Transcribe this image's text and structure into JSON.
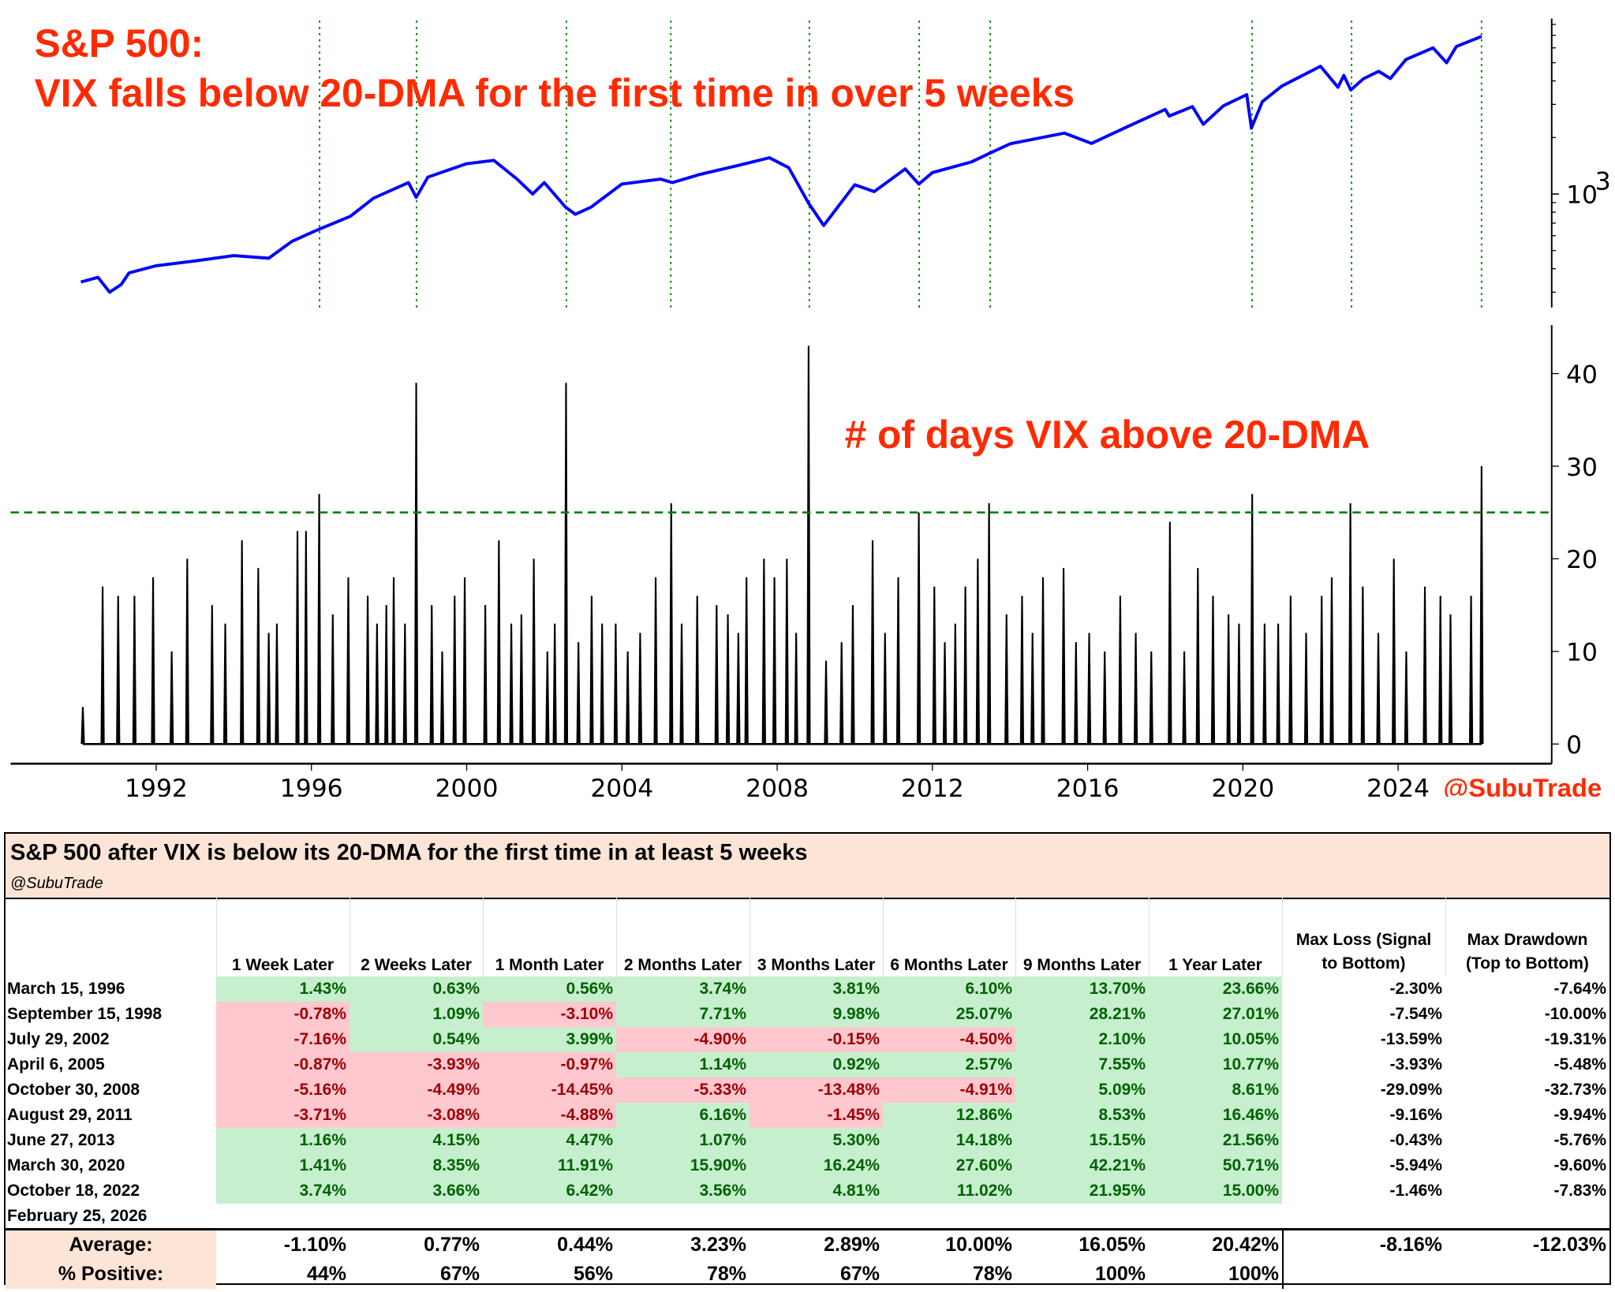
{
  "chart_data": [
    {
      "type": "line",
      "title": "S&P 500:",
      "subtitle": "VIX falls below 20-DMA for the first time in over 5 weeks",
      "yscale": "log",
      "ylim": [
        250,
        8400
      ],
      "xlim": [
        1989.5,
        2027.8
      ],
      "ytick_labels": [
        {
          "value": 1000,
          "base": "10",
          "exp": "3"
        }
      ],
      "line_color": "#0000ff",
      "signal_line_color": "#008000",
      "signal_dates": [
        1996.21,
        1998.71,
        2002.57,
        2005.26,
        2008.83,
        2011.66,
        2013.49,
        2020.24,
        2022.8,
        2026.15
      ],
      "points": [
        [
          1990.06,
          340
        ],
        [
          1990.5,
          360
        ],
        [
          1990.8,
          300
        ],
        [
          1991.1,
          330
        ],
        [
          1991.3,
          380
        ],
        [
          1992.0,
          415
        ],
        [
          1993.0,
          440
        ],
        [
          1994.0,
          470
        ],
        [
          1994.9,
          455
        ],
        [
          1995.5,
          560
        ],
        [
          1996.2,
          650
        ],
        [
          1997.0,
          760
        ],
        [
          1997.6,
          950
        ],
        [
          1998.5,
          1150
        ],
        [
          1998.7,
          960
        ],
        [
          1999.0,
          1230
        ],
        [
          2000.0,
          1450
        ],
        [
          2000.7,
          1510
        ],
        [
          2001.3,
          1200
        ],
        [
          2001.7,
          1000
        ],
        [
          2002.0,
          1150
        ],
        [
          2002.55,
          850
        ],
        [
          2002.8,
          780
        ],
        [
          2003.2,
          850
        ],
        [
          2004.0,
          1130
        ],
        [
          2005.0,
          1200
        ],
        [
          2005.3,
          1150
        ],
        [
          2006.0,
          1270
        ],
        [
          2007.0,
          1420
        ],
        [
          2007.8,
          1560
        ],
        [
          2008.3,
          1380
        ],
        [
          2008.8,
          900
        ],
        [
          2009.2,
          680
        ],
        [
          2010.0,
          1120
        ],
        [
          2010.5,
          1030
        ],
        [
          2011.3,
          1360
        ],
        [
          2011.65,
          1130
        ],
        [
          2012.0,
          1300
        ],
        [
          2013.0,
          1480
        ],
        [
          2013.4,
          1620
        ],
        [
          2014.0,
          1850
        ],
        [
          2015.4,
          2110
        ],
        [
          2016.1,
          1860
        ],
        [
          2017.0,
          2270
        ],
        [
          2018.0,
          2820
        ],
        [
          2018.1,
          2600
        ],
        [
          2018.7,
          2920
        ],
        [
          2018.98,
          2350
        ],
        [
          2019.5,
          2950
        ],
        [
          2020.1,
          3380
        ],
        [
          2020.22,
          2240
        ],
        [
          2020.5,
          3100
        ],
        [
          2021.0,
          3750
        ],
        [
          2022.0,
          4790
        ],
        [
          2022.45,
          3700
        ],
        [
          2022.6,
          4280
        ],
        [
          2022.78,
          3580
        ],
        [
          2023.1,
          4100
        ],
        [
          2023.5,
          4500
        ],
        [
          2023.8,
          4120
        ],
        [
          2024.2,
          5200
        ],
        [
          2024.9,
          6000
        ],
        [
          2025.25,
          5000
        ],
        [
          2025.5,
          6100
        ],
        [
          2026.15,
          6900
        ]
      ]
    },
    {
      "type": "bar",
      "annotation": "# of days VIX above 20-DMA",
      "ylim": [
        0,
        45
      ],
      "xlim": [
        1989.5,
        2027.8
      ],
      "yticks": [
        0,
        10,
        20,
        30,
        40
      ],
      "xticks": [
        1992,
        1996,
        2000,
        2004,
        2008,
        2012,
        2016,
        2020,
        2024
      ],
      "threshold": 25,
      "threshold_color": "#008000",
      "bar_color": "#000000",
      "grid": false,
      "spikes": [
        [
          1990.11,
          4
        ],
        [
          1990.62,
          17
        ],
        [
          1991.02,
          16
        ],
        [
          1991.44,
          16
        ],
        [
          1991.92,
          18
        ],
        [
          1992.4,
          10
        ],
        [
          1992.8,
          20
        ],
        [
          1993.44,
          15
        ],
        [
          1993.78,
          13
        ],
        [
          1994.21,
          22
        ],
        [
          1994.63,
          19
        ],
        [
          1994.9,
          12
        ],
        [
          1995.11,
          13
        ],
        [
          1995.64,
          23
        ],
        [
          1995.86,
          23
        ],
        [
          1996.2,
          27
        ],
        [
          1996.55,
          14
        ],
        [
          1996.95,
          18
        ],
        [
          1997.45,
          16
        ],
        [
          1997.69,
          13
        ],
        [
          1997.93,
          15
        ],
        [
          1998.12,
          18
        ],
        [
          1998.41,
          13
        ],
        [
          1998.7,
          39
        ],
        [
          1999.1,
          15
        ],
        [
          1999.37,
          10
        ],
        [
          1999.69,
          16
        ],
        [
          1999.95,
          18
        ],
        [
          2000.48,
          15
        ],
        [
          2000.83,
          22
        ],
        [
          2001.15,
          13
        ],
        [
          2001.41,
          14
        ],
        [
          2001.73,
          20
        ],
        [
          2002.08,
          10
        ],
        [
          2002.27,
          13
        ],
        [
          2002.56,
          39
        ],
        [
          2002.88,
          11
        ],
        [
          2003.22,
          16
        ],
        [
          2003.49,
          13
        ],
        [
          2003.84,
          13
        ],
        [
          2004.15,
          10
        ],
        [
          2004.47,
          12
        ],
        [
          2004.87,
          18
        ],
        [
          2005.27,
          26
        ],
        [
          2005.54,
          13
        ],
        [
          2005.94,
          16
        ],
        [
          2006.44,
          15
        ],
        [
          2006.73,
          14
        ],
        [
          2007.0,
          12
        ],
        [
          2007.21,
          18
        ],
        [
          2007.66,
          20
        ],
        [
          2007.93,
          18
        ],
        [
          2008.25,
          20
        ],
        [
          2008.49,
          12
        ],
        [
          2008.81,
          43
        ],
        [
          2009.26,
          9
        ],
        [
          2009.66,
          11
        ],
        [
          2009.95,
          15
        ],
        [
          2010.46,
          22
        ],
        [
          2010.78,
          12
        ],
        [
          2011.12,
          18
        ],
        [
          2011.65,
          25
        ],
        [
          2012.05,
          17
        ],
        [
          2012.32,
          11
        ],
        [
          2012.59,
          13
        ],
        [
          2012.85,
          17
        ],
        [
          2013.17,
          20
        ],
        [
          2013.46,
          26
        ],
        [
          2013.91,
          14
        ],
        [
          2014.31,
          16
        ],
        [
          2014.58,
          12
        ],
        [
          2014.85,
          18
        ],
        [
          2015.38,
          19
        ],
        [
          2015.7,
          11
        ],
        [
          2016.04,
          12
        ],
        [
          2016.44,
          10
        ],
        [
          2016.84,
          16
        ],
        [
          2017.24,
          12
        ],
        [
          2017.64,
          10
        ],
        [
          2018.12,
          24
        ],
        [
          2018.49,
          10
        ],
        [
          2018.84,
          19
        ],
        [
          2019.23,
          16
        ],
        [
          2019.63,
          14
        ],
        [
          2019.9,
          13
        ],
        [
          2020.24,
          27
        ],
        [
          2020.56,
          13
        ],
        [
          2020.91,
          13
        ],
        [
          2021.23,
          16
        ],
        [
          2021.63,
          12
        ],
        [
          2022.03,
          16
        ],
        [
          2022.29,
          18
        ],
        [
          2022.77,
          26
        ],
        [
          2023.09,
          17
        ],
        [
          2023.49,
          12
        ],
        [
          2023.89,
          20
        ],
        [
          2024.21,
          10
        ],
        [
          2024.69,
          17
        ],
        [
          2025.09,
          16
        ],
        [
          2025.35,
          14
        ],
        [
          2025.88,
          16
        ],
        [
          2026.15,
          30
        ]
      ]
    }
  ],
  "watermark": "@SubuTrade",
  "table": {
    "title": "S&P 500 after VIX is below its 20-DMA for the first time in at least 5 weeks",
    "subtitle": "@SubuTrade",
    "columns": [
      "1 Week Later",
      "2 Weeks Later",
      "1 Month Later",
      "2 Months Later",
      "3 Months Later",
      "6 Months Later",
      "9 Months Later",
      "1 Year Later"
    ],
    "extra_columns": [
      [
        "Max Loss (Signal",
        "to Bottom)"
      ],
      [
        "Max Drawdown",
        "(Top to Bottom)"
      ]
    ],
    "colors": {
      "pos_fill": "#c6efce",
      "pos_text": "#006100",
      "neg_fill": "#ffc7ce",
      "neg_text": "#9c0006",
      "header_fill": "#fce4d6"
    },
    "rows": [
      {
        "date": "March 15, 1996",
        "values": [
          "1.43%",
          "0.63%",
          "0.56%",
          "3.74%",
          "3.81%",
          "6.10%",
          "13.70%",
          "23.66%"
        ],
        "extra": [
          "-2.30%",
          "-7.64%"
        ]
      },
      {
        "date": "September 15, 1998",
        "values": [
          "-0.78%",
          "1.09%",
          "-3.10%",
          "7.71%",
          "9.98%",
          "25.07%",
          "28.21%",
          "27.01%"
        ],
        "extra": [
          "-7.54%",
          "-10.00%"
        ]
      },
      {
        "date": "July 29, 2002",
        "values": [
          "-7.16%",
          "0.54%",
          "3.99%",
          "-4.90%",
          "-0.15%",
          "-4.50%",
          "2.10%",
          "10.05%"
        ],
        "extra": [
          "-13.59%",
          "-19.31%"
        ]
      },
      {
        "date": "April 6, 2005",
        "values": [
          "-0.87%",
          "-3.93%",
          "-0.97%",
          "1.14%",
          "0.92%",
          "2.57%",
          "7.55%",
          "10.77%"
        ],
        "extra": [
          "-3.93%",
          "-5.48%"
        ]
      },
      {
        "date": "October 30, 2008",
        "values": [
          "-5.16%",
          "-4.49%",
          "-14.45%",
          "-5.33%",
          "-13.48%",
          "-4.91%",
          "5.09%",
          "8.61%"
        ],
        "extra": [
          "-29.09%",
          "-32.73%"
        ]
      },
      {
        "date": "August 29, 2011",
        "values": [
          "-3.71%",
          "-3.08%",
          "-4.88%",
          "6.16%",
          "-1.45%",
          "12.86%",
          "8.53%",
          "16.46%"
        ],
        "extra": [
          "-9.16%",
          "-9.94%"
        ]
      },
      {
        "date": "June 27, 2013",
        "values": [
          "1.16%",
          "4.15%",
          "4.47%",
          "1.07%",
          "5.30%",
          "14.18%",
          "15.15%",
          "21.56%"
        ],
        "extra": [
          "-0.43%",
          "-5.76%"
        ]
      },
      {
        "date": "March 30, 2020",
        "values": [
          "1.41%",
          "8.35%",
          "11.91%",
          "15.90%",
          "16.24%",
          "27.60%",
          "42.21%",
          "50.71%"
        ],
        "extra": [
          "-5.94%",
          "-9.60%"
        ]
      },
      {
        "date": "October 18, 2022",
        "values": [
          "3.74%",
          "3.66%",
          "6.42%",
          "3.56%",
          "4.81%",
          "11.02%",
          "21.95%",
          "15.00%"
        ],
        "extra": [
          "-1.46%",
          "-7.83%"
        ]
      },
      {
        "date": "February 25, 2026",
        "values": [],
        "extra": []
      }
    ],
    "average": {
      "label": "Average:",
      "values": [
        "-1.10%",
        "0.77%",
        "0.44%",
        "3.23%",
        "2.89%",
        "10.00%",
        "16.05%",
        "20.42%"
      ],
      "extra": [
        "-8.16%",
        "-12.03%"
      ]
    },
    "positive": {
      "label": "% Positive:",
      "values": [
        "44%",
        "67%",
        "56%",
        "78%",
        "67%",
        "78%",
        "100%",
        "100%"
      ]
    }
  }
}
